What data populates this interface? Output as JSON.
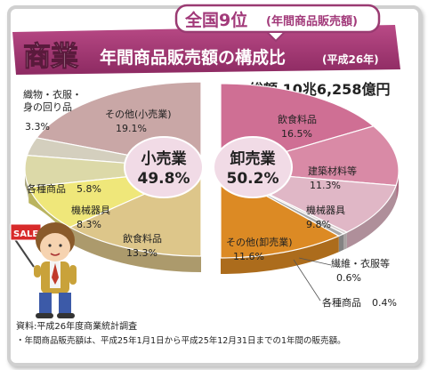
{
  "header": {
    "badge": "全国9位",
    "badge_note": "(年間商品販売額)",
    "main_title": "商業",
    "sub_title": "年間商品販売額の構成比",
    "year_note": "(平成26年)"
  },
  "total_label": "総額 10兆6,258億円",
  "sale_sign": "SALE",
  "chart_data": {
    "type": "pie",
    "left_pie": {
      "name": "小売業",
      "share_label": "49.8%",
      "slices": [
        {
          "label": "その他(小売業)",
          "value_label": "19.1%",
          "value": 19.1,
          "color": "#c9a7a6"
        },
        {
          "label": "織物・衣服・身の回り品",
          "value_label": "3.3%",
          "value": 3.3,
          "color": "#d4cfbe"
        },
        {
          "label": "各種商品",
          "value_label": "5.8%",
          "value": 5.8,
          "color": "#dcd9a8"
        },
        {
          "label": "機械器具",
          "value_label": "8.3%",
          "value": 8.3,
          "color": "#efe77a"
        },
        {
          "label": "飲食料品",
          "value_label": "13.3%",
          "value": 13.3,
          "color": "#ddc68a"
        }
      ]
    },
    "right_pie": {
      "name": "卸売業",
      "share_label": "50.2%",
      "slices": [
        {
          "label": "飲食料品",
          "value_label": "16.5%",
          "value": 16.5,
          "color": "#cf6f94"
        },
        {
          "label": "建築材料等",
          "value_label": "11.3%",
          "value": 11.3,
          "color": "#d98aa6"
        },
        {
          "label": "機械器具",
          "value_label": "9.8%",
          "value": 9.8,
          "color": "#e0b7c6"
        },
        {
          "label": "各種商品",
          "value_label": "0.4%",
          "value": 0.4,
          "color": "#d9d0d0"
        },
        {
          "label": "繊維・衣服等",
          "value_label": "0.6%",
          "value": 0.6,
          "color": "#a8a8a8"
        },
        {
          "label": "その他(卸売業)",
          "value_label": "11.6%",
          "value": 11.6,
          "color": "#dc8a24"
        }
      ]
    }
  },
  "footer": {
    "source": "資料:平成26年度商業統計調査",
    "note": "・年間商品販売額は、平成25年1月1日から平成25年12月31日までの1年間の販売額。"
  }
}
